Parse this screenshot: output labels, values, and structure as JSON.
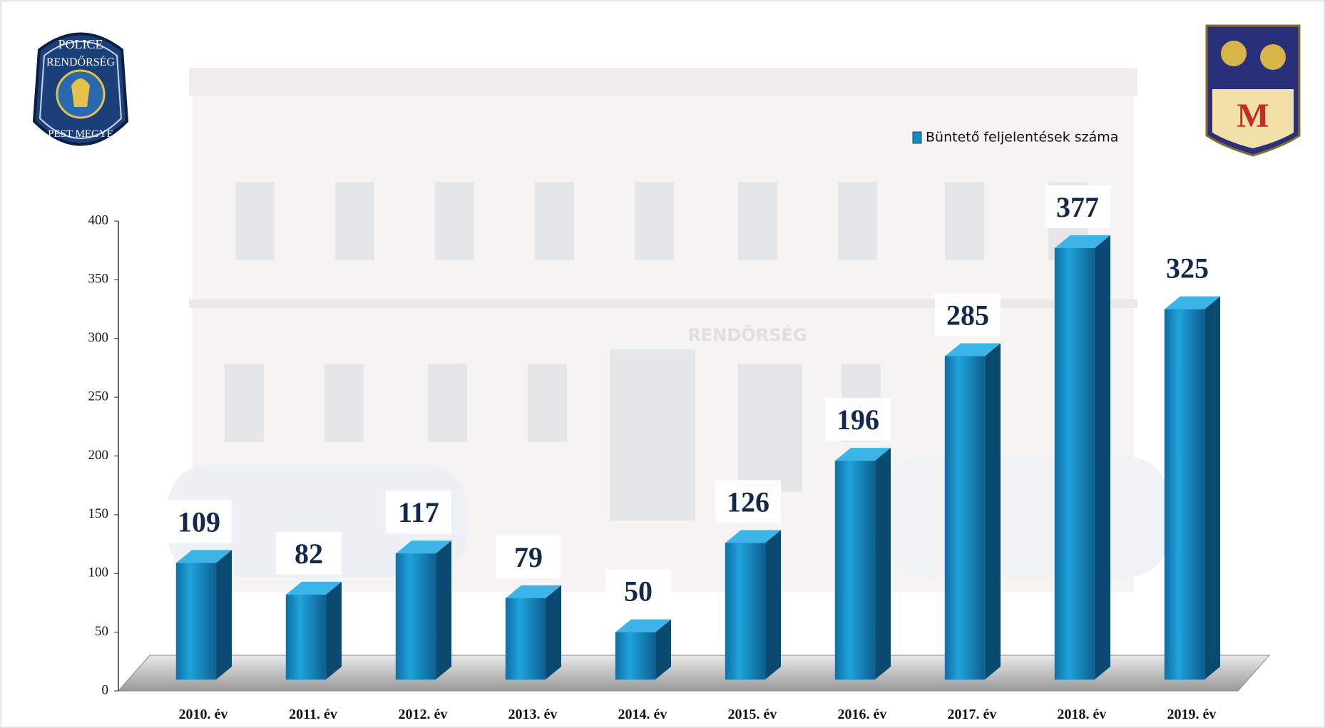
{
  "chart_data": {
    "type": "bar3d",
    "categories": [
      "2010. év",
      "2011. év",
      "2012. év",
      "2013. év",
      "2014. év",
      "2015. év",
      "2016. év",
      "2017. év",
      "2018. év",
      "2019. év"
    ],
    "series": [
      {
        "name": "Büntető feljelentések száma",
        "color": "#1a8cc4",
        "values": [
          109,
          82,
          117,
          79,
          50,
          126,
          196,
          285,
          377,
          325
        ]
      }
    ],
    "ylim": [
      0,
      400
    ],
    "yticks": [
      0,
      50,
      100,
      150,
      200,
      250,
      300,
      350,
      400
    ],
    "legend": "top-right"
  },
  "logos": {
    "police": {
      "top": "POLICE",
      "middle": "RENDŐRSÉG",
      "bottom": "PEST MEGYE"
    },
    "crest": "M"
  },
  "background_sign": "RENDŐRSÉG"
}
